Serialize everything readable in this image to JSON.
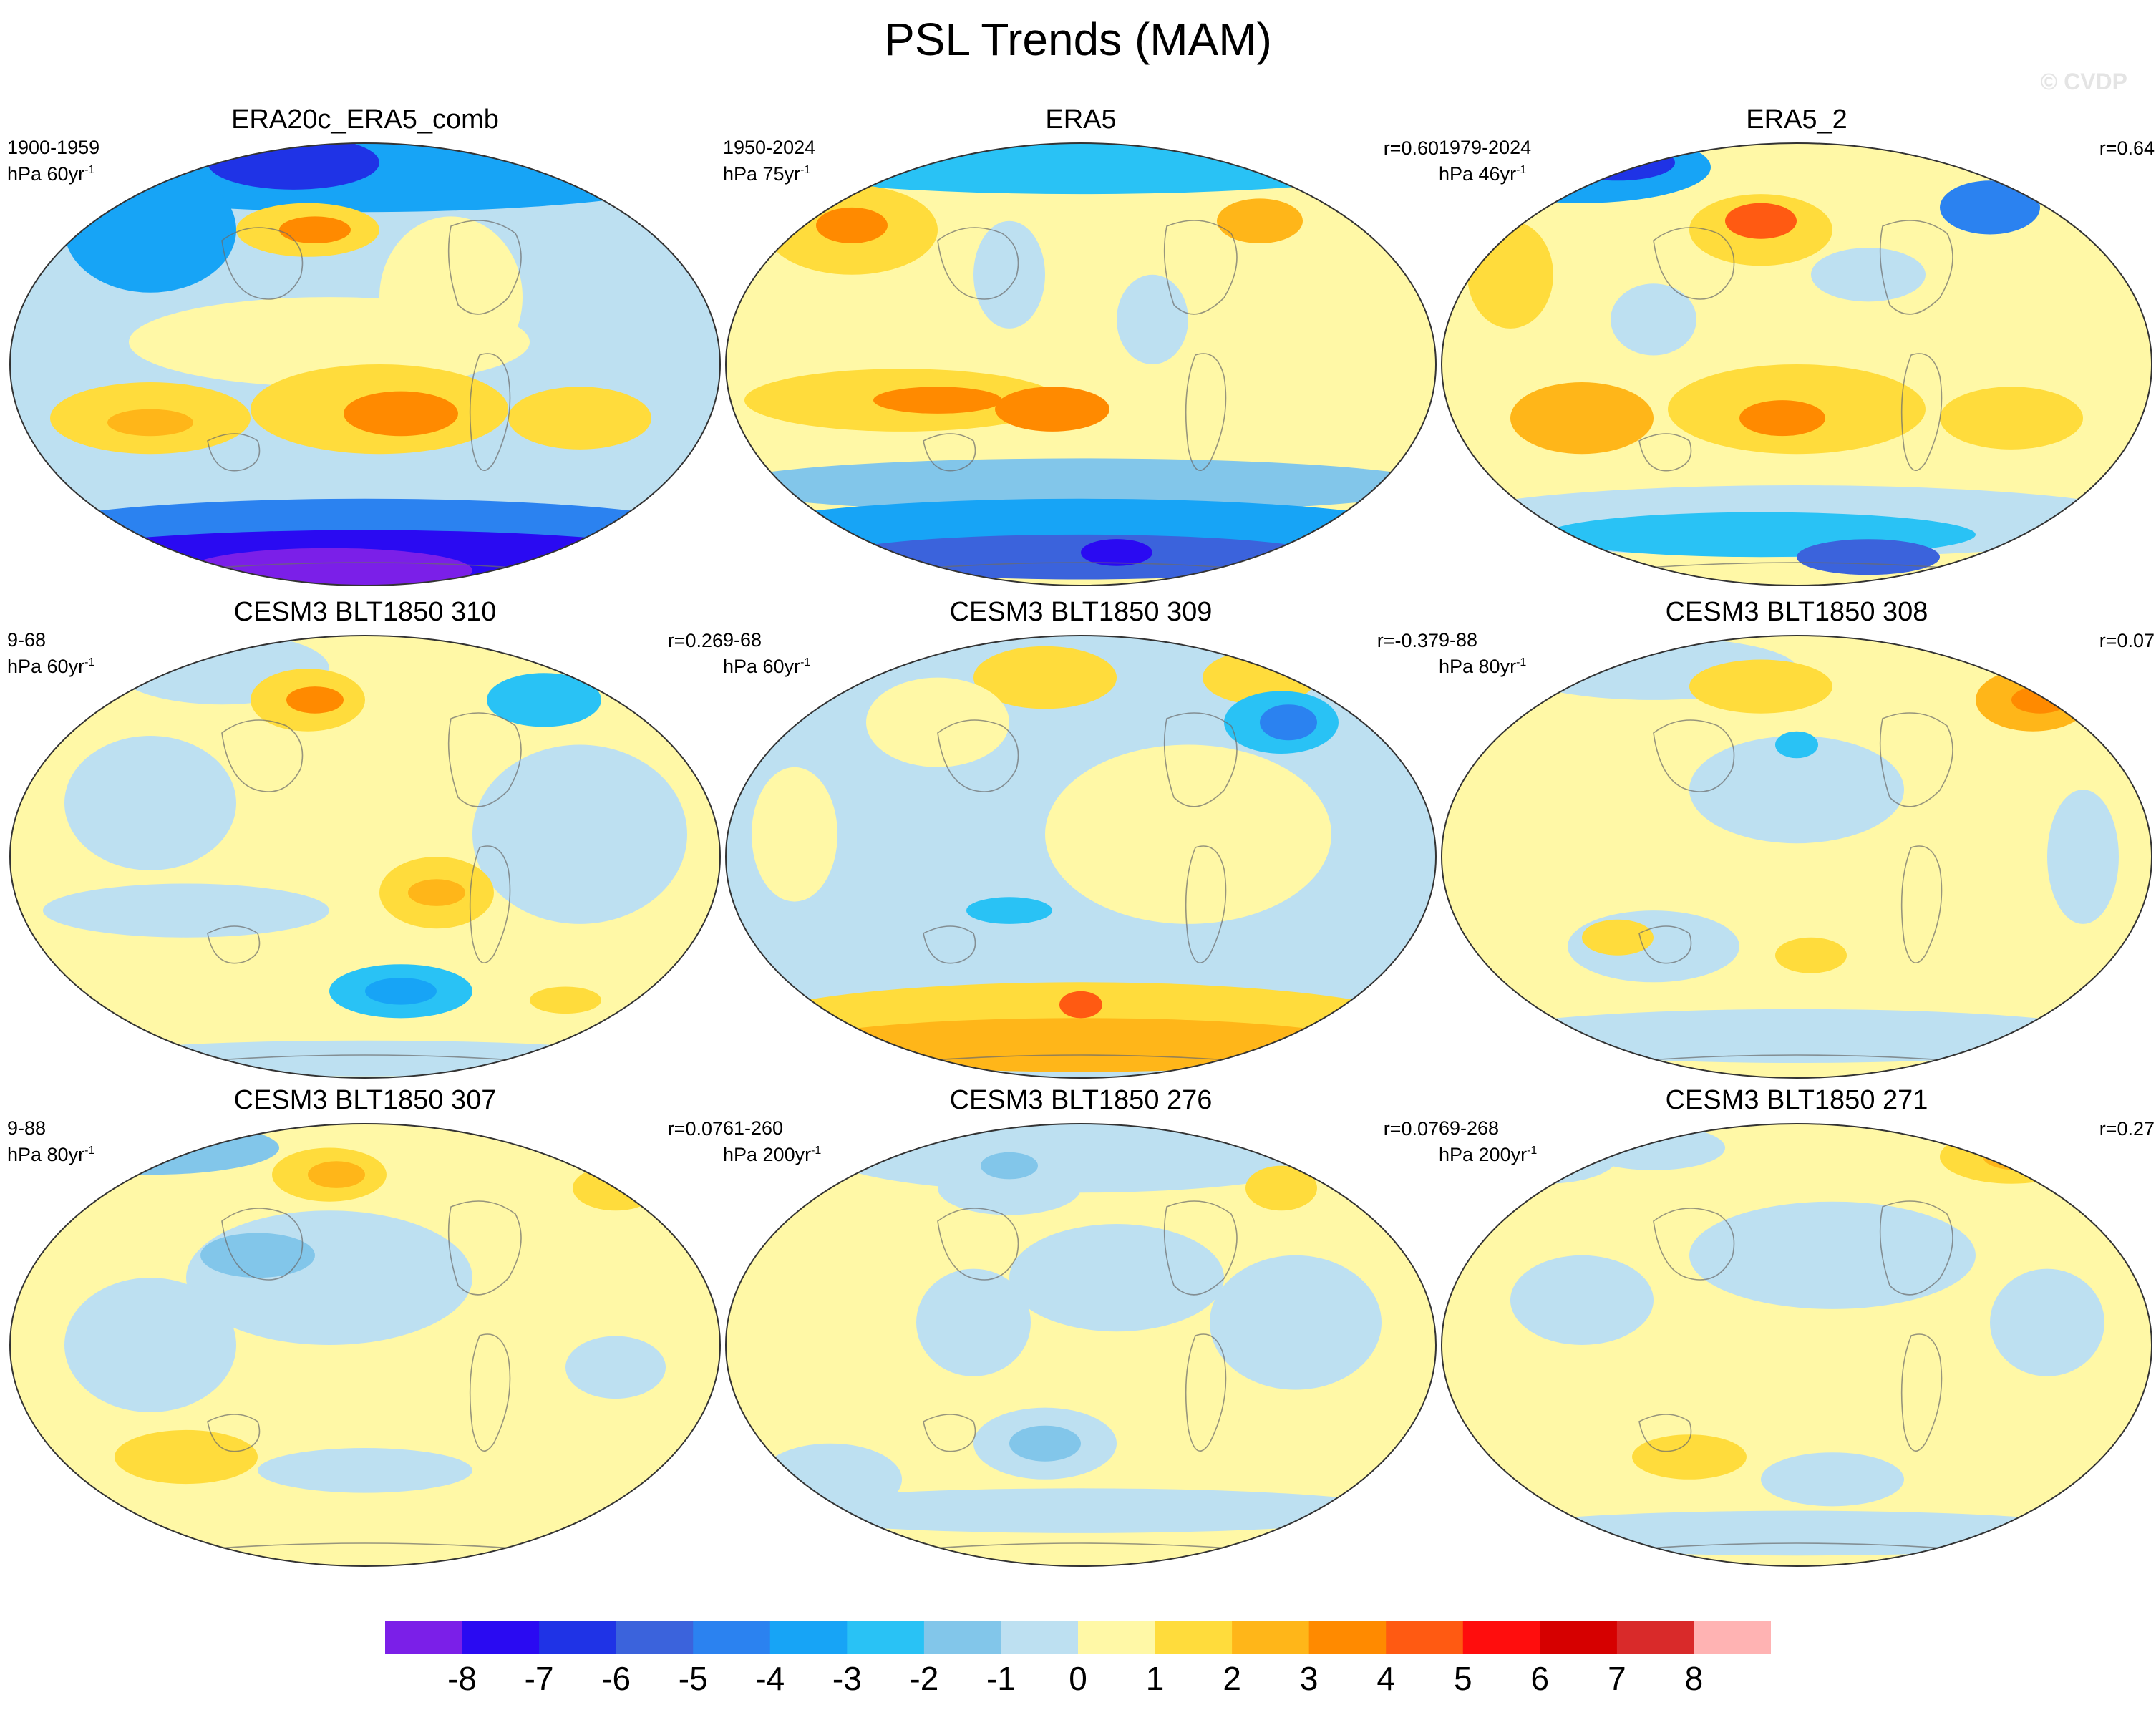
{
  "title": "PSL Trends (MAM)",
  "watermark": "© CVDP",
  "colorbar": {
    "labels": [
      "-8",
      "-7",
      "-6",
      "-5",
      "-4",
      "-3",
      "-2",
      "-1",
      "0",
      "1",
      "2",
      "3",
      "4",
      "5",
      "6",
      "7",
      "8"
    ],
    "colors": [
      "#7b1fe8",
      "#2a0af2",
      "#1f33e6",
      "#3b63dc",
      "#2b82f0",
      "#17a4f6",
      "#29c2f5",
      "#82c6ea",
      "#bde0f1",
      "#fff8a6",
      "#ffdc3c",
      "#ffb619",
      "#ff8a00",
      "#ff5a12",
      "#ff0d0d",
      "#d60000",
      "#d92a2a",
      "#ffb3b3"
    ]
  },
  "panels": [
    {
      "title": "ERA20c_ERA5_comb",
      "period": "1900-1959",
      "units": "hPa 60yr",
      "corr": "",
      "palette": "era20c"
    },
    {
      "title": "ERA5",
      "period": "1950-2024",
      "units": "hPa 75yr",
      "corr": "r=0.60",
      "palette": "era5"
    },
    {
      "title": "ERA5_2",
      "period": "1979-2024",
      "units": "hPa 46yr",
      "corr": "r=0.64",
      "palette": "era5_2"
    },
    {
      "title": "CESM3 BLT1850 310",
      "period": "9-68",
      "units": "hPa 60yr",
      "corr": "r=0.26",
      "palette": "m310"
    },
    {
      "title": "CESM3 BLT1850 309",
      "period": "9-68",
      "units": "hPa 60yr",
      "corr": "r=-0.37",
      "palette": "m309"
    },
    {
      "title": "CESM3 BLT1850 308",
      "period": "9-88",
      "units": "hPa 80yr",
      "corr": "r=0.07",
      "palette": "m308"
    },
    {
      "title": "CESM3 BLT1850 307",
      "period": "9-88",
      "units": "hPa 80yr",
      "corr": "r=0.07",
      "palette": "m307"
    },
    {
      "title": "CESM3 BLT1850 276",
      "period": "61-260",
      "units": "hPa 200yr",
      "corr": "r=0.07",
      "palette": "m276"
    },
    {
      "title": "CESM3 BLT1850 271",
      "period": "69-268",
      "units": "hPa 200yr",
      "corr": "r=0.27",
      "palette": "m271"
    }
  ],
  "superscript": "-1"
}
